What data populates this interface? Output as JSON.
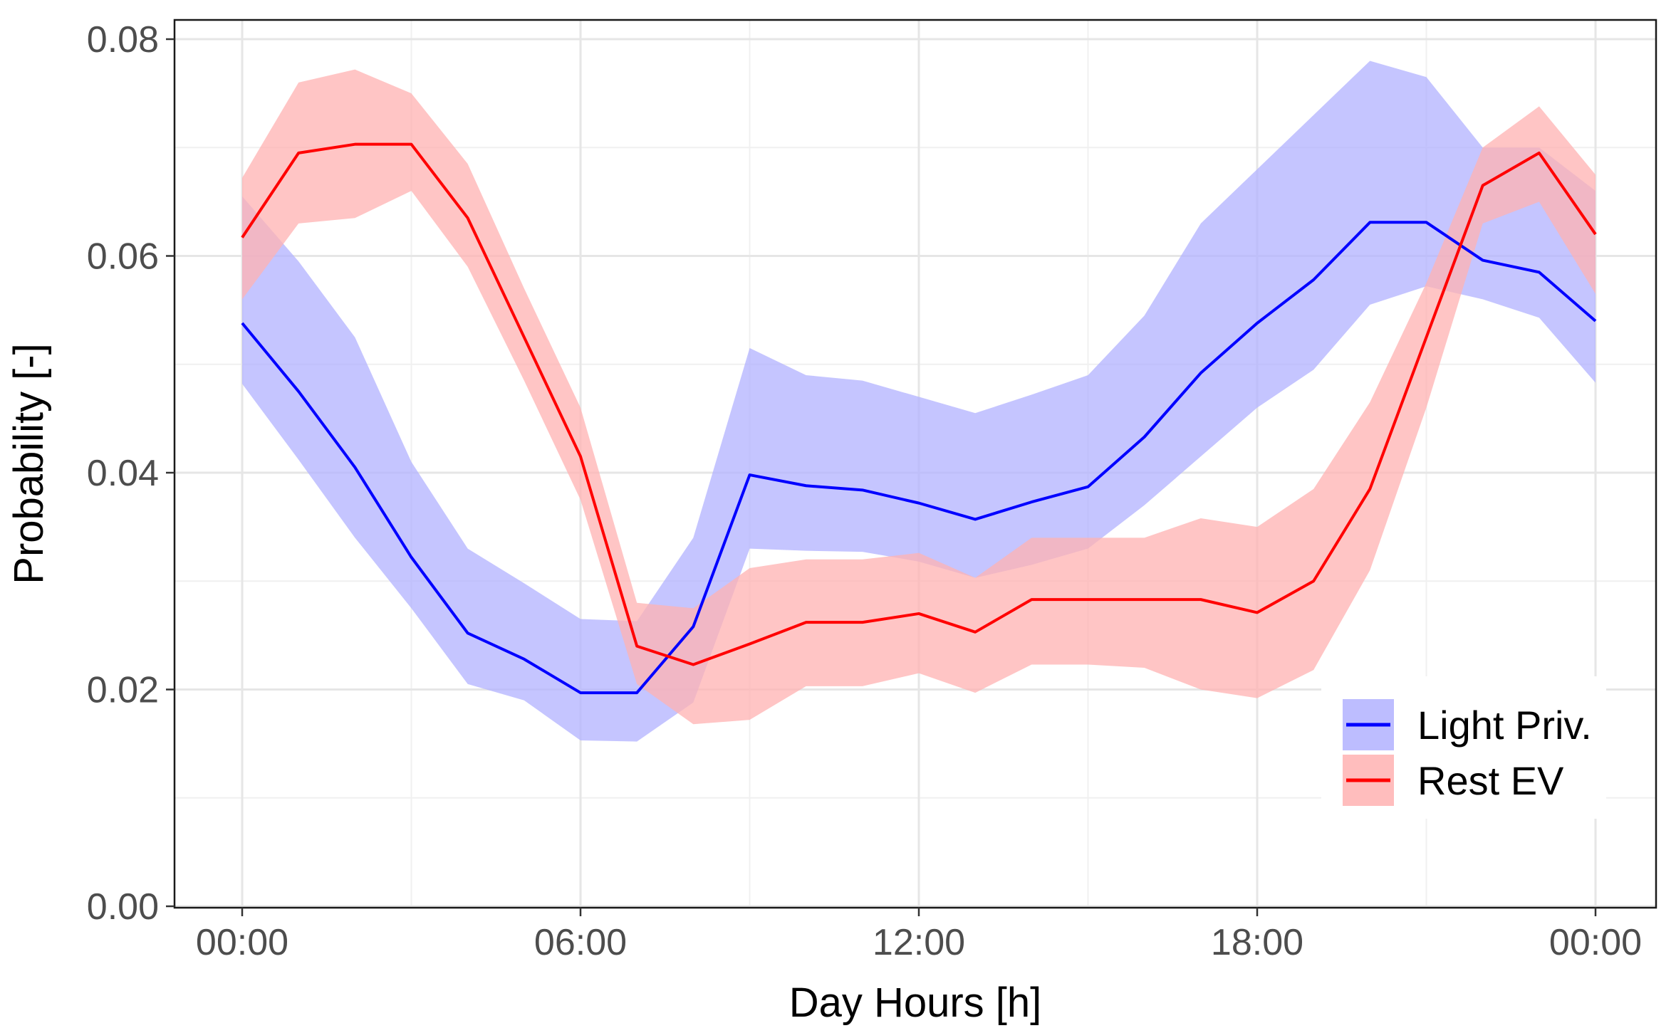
{
  "chart_data": {
    "type": "area",
    "xlabel": "Day Hours [h]",
    "ylabel": "Probability [-]",
    "xlim": [
      0,
      24
    ],
    "ylim": [
      0,
      0.08
    ],
    "x_ticks": [
      {
        "value": 0,
        "label": "00:00"
      },
      {
        "value": 6,
        "label": "06:00"
      },
      {
        "value": 12,
        "label": "12:00"
      },
      {
        "value": 18,
        "label": "18:00"
      },
      {
        "value": 24,
        "label": "00:00"
      }
    ],
    "y_ticks": [
      {
        "value": 0.0,
        "label": "0.00"
      },
      {
        "value": 0.02,
        "label": "0.02"
      },
      {
        "value": 0.04,
        "label": "0.04"
      },
      {
        "value": 0.06,
        "label": "0.06"
      },
      {
        "value": 0.08,
        "label": "0.08"
      }
    ],
    "grid": true,
    "legend": {
      "placement": "bottom-right"
    },
    "x": [
      0,
      1,
      2,
      3,
      4,
      5,
      6,
      7,
      8,
      9,
      10,
      11,
      12,
      13,
      14,
      15,
      16,
      17,
      18,
      19,
      20,
      21,
      22,
      23,
      24
    ],
    "series": [
      {
        "name": "Light Priv.",
        "color": "#0000ff",
        "band_color": "#b2b2ff",
        "values": [
          0.0538,
          0.0475,
          0.0405,
          0.0322,
          0.0252,
          0.0228,
          0.0197,
          0.0197,
          0.0258,
          0.0398,
          0.0388,
          0.0384,
          0.0372,
          0.0357,
          0.0373,
          0.0387,
          0.0433,
          0.0492,
          0.0538,
          0.0578,
          0.0631,
          0.0631,
          0.0596,
          0.0585,
          0.054
        ],
        "lower": [
          0.0482,
          0.0412,
          0.034,
          0.0275,
          0.0205,
          0.019,
          0.0153,
          0.0152,
          0.0188,
          0.033,
          0.0328,
          0.0327,
          0.0318,
          0.0303,
          0.0315,
          0.033,
          0.037,
          0.0415,
          0.046,
          0.0495,
          0.0555,
          0.0572,
          0.056,
          0.0543,
          0.0483
        ],
        "upper": [
          0.0655,
          0.0595,
          0.0525,
          0.041,
          0.033,
          0.0298,
          0.0265,
          0.0263,
          0.034,
          0.0515,
          0.049,
          0.0485,
          0.047,
          0.0455,
          0.0472,
          0.049,
          0.0545,
          0.063,
          0.068,
          0.073,
          0.078,
          0.0765,
          0.07,
          0.07,
          0.066
        ]
      },
      {
        "name": "Rest EV",
        "color": "#ff0000",
        "band_color": "#ffb2b2",
        "values": [
          0.0617,
          0.0695,
          0.0703,
          0.0703,
          0.0635,
          0.0525,
          0.0415,
          0.024,
          0.0223,
          0.0242,
          0.0262,
          0.0262,
          0.027,
          0.0253,
          0.0283,
          0.0283,
          0.0283,
          0.0283,
          0.0271,
          0.03,
          0.0385,
          0.0525,
          0.0665,
          0.0695,
          0.062
        ],
        "lower": [
          0.056,
          0.063,
          0.0635,
          0.066,
          0.059,
          0.0485,
          0.0375,
          0.0205,
          0.0168,
          0.0172,
          0.0203,
          0.0203,
          0.0215,
          0.0197,
          0.0223,
          0.0223,
          0.022,
          0.02,
          0.0192,
          0.0218,
          0.031,
          0.046,
          0.063,
          0.065,
          0.0565
        ],
        "upper": [
          0.0672,
          0.076,
          0.0772,
          0.075,
          0.0685,
          0.057,
          0.046,
          0.028,
          0.0275,
          0.0312,
          0.032,
          0.032,
          0.0326,
          0.0303,
          0.034,
          0.034,
          0.034,
          0.0358,
          0.035,
          0.0385,
          0.0465,
          0.0575,
          0.07,
          0.0738,
          0.0675
        ]
      }
    ]
  }
}
